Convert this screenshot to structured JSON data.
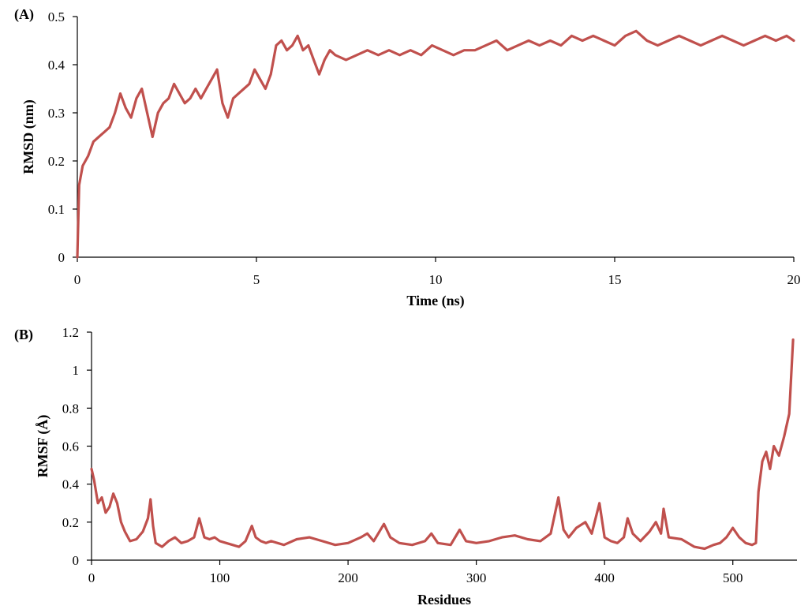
{
  "chart_data": [
    {
      "type": "line",
      "panel_label": "(A)",
      "xlabel": "Time (ns)",
      "ylabel": "RMSD (nm)",
      "xlim": [
        0,
        20
      ],
      "ylim": [
        0,
        0.5
      ],
      "xticks": [
        0,
        5,
        10,
        15,
        20
      ],
      "yticks": [
        0,
        0.1,
        0.2,
        0.3,
        0.4,
        0.5
      ],
      "grid": false,
      "series": [
        {
          "color": "#C0504D",
          "x": [
            0,
            0.05,
            0.15,
            0.3,
            0.45,
            0.6,
            0.75,
            0.9,
            1.05,
            1.2,
            1.35,
            1.5,
            1.65,
            1.8,
            1.95,
            2.1,
            2.25,
            2.4,
            2.55,
            2.7,
            2.85,
            3.0,
            3.15,
            3.3,
            3.45,
            3.6,
            3.75,
            3.9,
            4.05,
            4.2,
            4.35,
            4.5,
            4.65,
            4.8,
            4.95,
            5.1,
            5.25,
            5.4,
            5.55,
            5.7,
            5.85,
            6.0,
            6.15,
            6.3,
            6.45,
            6.6,
            6.75,
            6.9,
            7.05,
            7.2,
            7.5,
            7.8,
            8.1,
            8.4,
            8.7,
            9.0,
            9.3,
            9.6,
            9.9,
            10.2,
            10.5,
            10.8,
            11.1,
            11.4,
            11.7,
            12.0,
            12.3,
            12.6,
            12.9,
            13.2,
            13.5,
            13.8,
            14.1,
            14.4,
            14.7,
            15.0,
            15.3,
            15.6,
            15.9,
            16.2,
            16.5,
            16.8,
            17.1,
            17.4,
            17.7,
            18.0,
            18.3,
            18.6,
            18.9,
            19.2,
            19.5,
            19.8,
            20.0
          ],
          "y": [
            0.0,
            0.15,
            0.19,
            0.21,
            0.24,
            0.25,
            0.26,
            0.27,
            0.3,
            0.34,
            0.31,
            0.29,
            0.33,
            0.35,
            0.3,
            0.25,
            0.3,
            0.32,
            0.33,
            0.36,
            0.34,
            0.32,
            0.33,
            0.35,
            0.33,
            0.35,
            0.37,
            0.39,
            0.32,
            0.29,
            0.33,
            0.34,
            0.35,
            0.36,
            0.39,
            0.37,
            0.35,
            0.38,
            0.44,
            0.45,
            0.43,
            0.44,
            0.46,
            0.43,
            0.44,
            0.41,
            0.38,
            0.41,
            0.43,
            0.42,
            0.41,
            0.42,
            0.43,
            0.42,
            0.43,
            0.42,
            0.43,
            0.42,
            0.44,
            0.43,
            0.42,
            0.43,
            0.43,
            0.44,
            0.45,
            0.43,
            0.44,
            0.45,
            0.44,
            0.45,
            0.44,
            0.46,
            0.45,
            0.46,
            0.45,
            0.44,
            0.46,
            0.47,
            0.45,
            0.44,
            0.45,
            0.46,
            0.45,
            0.44,
            0.45,
            0.46,
            0.45,
            0.44,
            0.45,
            0.46,
            0.45,
            0.46,
            0.45
          ]
        }
      ]
    },
    {
      "type": "line",
      "panel_label": "(B)",
      "xlabel": "Residues",
      "ylabel": "RMSF (Å)",
      "xlim": [
        0,
        550
      ],
      "ylim": [
        0,
        1.2
      ],
      "xticks": [
        0,
        100,
        200,
        300,
        400,
        500
      ],
      "yticks": [
        0,
        0.2,
        0.4,
        0.6,
        0.8,
        1,
        1.2
      ],
      "grid": false,
      "series": [
        {
          "color": "#C0504D",
          "x": [
            0,
            2,
            5,
            8,
            11,
            14,
            17,
            20,
            23,
            26,
            30,
            35,
            40,
            44,
            46,
            48,
            50,
            55,
            60,
            65,
            70,
            75,
            80,
            84,
            88,
            92,
            96,
            100,
            105,
            110,
            115,
            120,
            125,
            128,
            132,
            136,
            140,
            150,
            160,
            170,
            180,
            190,
            200,
            210,
            215,
            220,
            228,
            233,
            240,
            250,
            260,
            265,
            270,
            280,
            287,
            292,
            300,
            310,
            320,
            330,
            340,
            350,
            358,
            364,
            368,
            372,
            378,
            385,
            390,
            396,
            400,
            405,
            410,
            415,
            418,
            422,
            428,
            435,
            440,
            444,
            446,
            450,
            460,
            470,
            478,
            485,
            490,
            495,
            500,
            505,
            510,
            515,
            518,
            520,
            523,
            526,
            529,
            532,
            536,
            540,
            544,
            547
          ],
          "y": [
            0.48,
            0.42,
            0.3,
            0.33,
            0.25,
            0.28,
            0.35,
            0.3,
            0.2,
            0.15,
            0.1,
            0.11,
            0.15,
            0.22,
            0.32,
            0.18,
            0.09,
            0.07,
            0.1,
            0.12,
            0.09,
            0.1,
            0.12,
            0.22,
            0.12,
            0.11,
            0.12,
            0.1,
            0.09,
            0.08,
            0.07,
            0.1,
            0.18,
            0.12,
            0.1,
            0.09,
            0.1,
            0.08,
            0.11,
            0.12,
            0.1,
            0.08,
            0.09,
            0.12,
            0.14,
            0.1,
            0.19,
            0.12,
            0.09,
            0.08,
            0.1,
            0.14,
            0.09,
            0.08,
            0.16,
            0.1,
            0.09,
            0.1,
            0.12,
            0.13,
            0.11,
            0.1,
            0.14,
            0.33,
            0.16,
            0.12,
            0.17,
            0.2,
            0.14,
            0.3,
            0.12,
            0.1,
            0.09,
            0.12,
            0.22,
            0.14,
            0.1,
            0.15,
            0.2,
            0.14,
            0.27,
            0.12,
            0.11,
            0.07,
            0.06,
            0.08,
            0.09,
            0.12,
            0.17,
            0.12,
            0.09,
            0.08,
            0.09,
            0.36,
            0.52,
            0.57,
            0.48,
            0.6,
            0.55,
            0.65,
            0.77,
            1.16
          ]
        }
      ]
    }
  ]
}
